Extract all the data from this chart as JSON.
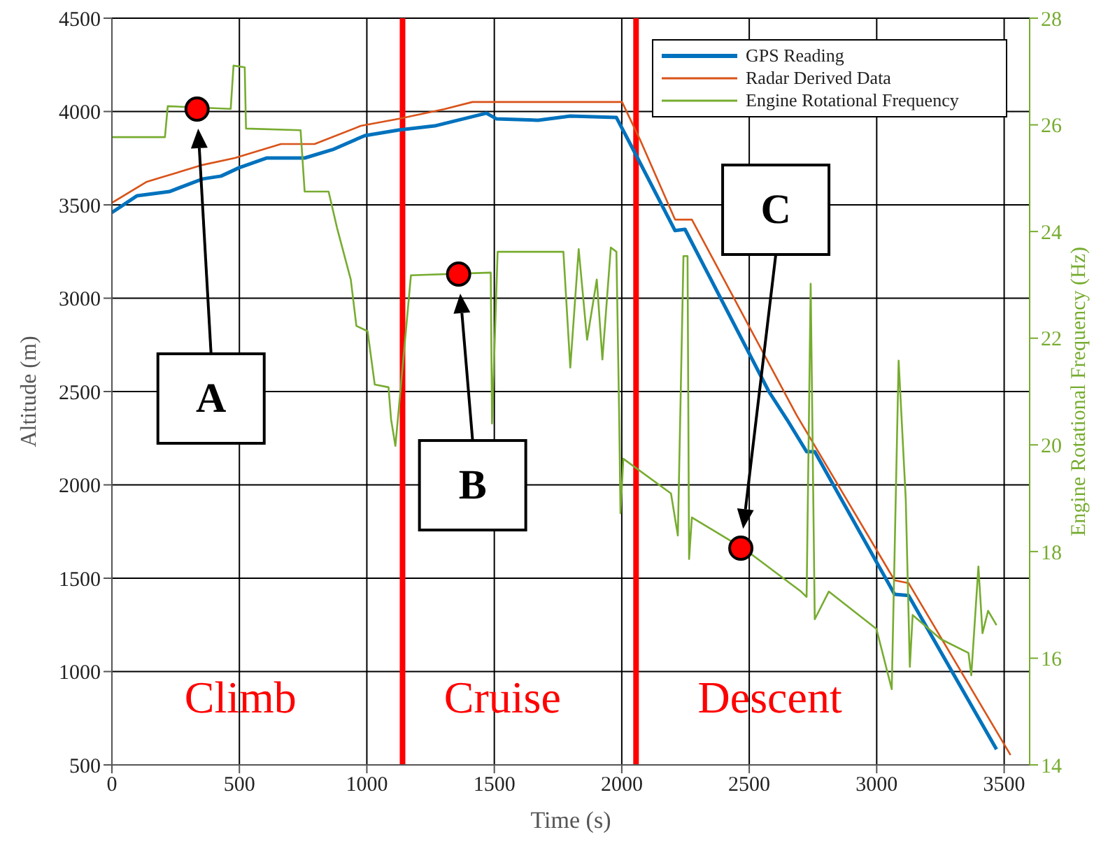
{
  "chart_data": {
    "type": "line",
    "xlabel": "Time (s)",
    "ylabel": "Altitude (m)",
    "y2label": "Engine Rotational Frequency (Hz)",
    "xlim": [
      0,
      3600
    ],
    "xticks": [
      0,
      500,
      1000,
      1500,
      2000,
      2500,
      3000,
      3500
    ],
    "ylim": [
      500,
      4500
    ],
    "yticks": [
      500,
      1000,
      1500,
      2000,
      2500,
      3000,
      3500,
      4000,
      4500
    ],
    "y2lim": [
      14,
      28
    ],
    "y2ticks": [
      14,
      16,
      18,
      20,
      22,
      24,
      26,
      28
    ],
    "grid": true,
    "legend": "top right",
    "marker": "none",
    "line_style": "solid",
    "series": [
      {
        "name": "GPS Reading",
        "color": "#0072bd",
        "x": [
          0,
          99,
          225,
          356,
          428,
          499,
          608,
          756,
          866,
          992,
          1124,
          1266,
          1469,
          1508,
          1672,
          1798,
          1979,
          2045,
          2209,
          2248,
          2577,
          2648,
          2725,
          2757,
          3070,
          3125,
          3470
        ],
        "values": [
          3459,
          3549,
          3571,
          3639,
          3654,
          3699,
          3751,
          3751,
          3796,
          3871,
          3901,
          3923,
          3991,
          3961,
          3953,
          3976,
          3968,
          3796,
          3362,
          3369,
          2500,
          2350,
          2178,
          2178,
          1414,
          1407,
          583
        ]
      },
      {
        "name": "Radar Derived Data",
        "color": "#d95319",
        "x": [
          0,
          137,
          356,
          482,
          663,
          795,
          976,
          1124,
          1305,
          1414,
          2001,
          2072,
          2209,
          2275,
          2686,
          3070,
          3125,
          3525
        ],
        "values": [
          3511,
          3624,
          3714,
          3751,
          3826,
          3826,
          3923,
          3961,
          4013,
          4051,
          4051,
          3848,
          3421,
          3421,
          2373,
          1489,
          1474,
          553
        ]
      },
      {
        "name": "Engine Rotational Frequency",
        "color": "#77ac30",
        "axis": "y2",
        "x": [
          0,
          208,
          219,
          466,
          477,
          521,
          526,
          740,
          756,
          850,
          883,
          937,
          959,
          1003,
          1031,
          1085,
          1095,
          1112,
          1173,
          1486,
          1491,
          1513,
          1771,
          1798,
          1831,
          1864,
          1902,
          1924,
          1957,
          1979,
          1990,
          1995,
          2006,
          2193,
          2220,
          2242,
          2258,
          2264,
          2275,
          2483,
          2703,
          2725,
          2741,
          2757,
          2812,
          2999,
          3059,
          3086,
          3114,
          3130,
          3141,
          3251,
          3360,
          3371,
          3399,
          3415,
          3437,
          3470
        ],
        "values": [
          25.77,
          25.77,
          26.35,
          26.3,
          27.11,
          27.08,
          25.93,
          25.9,
          24.75,
          24.75,
          24.07,
          23.1,
          22.23,
          22.13,
          21.13,
          21.08,
          20.48,
          19.98,
          23.18,
          23.23,
          20.4,
          23.62,
          23.62,
          21.45,
          23.67,
          21.97,
          23.1,
          21.6,
          23.7,
          23.62,
          20.48,
          18.72,
          19.74,
          19.09,
          18.3,
          23.54,
          23.54,
          17.86,
          18.64,
          18.04,
          17.25,
          17.15,
          23.02,
          16.73,
          17.25,
          16.55,
          15.42,
          21.58,
          18.98,
          15.84,
          16.81,
          16.36,
          16.1,
          15.68,
          17.72,
          16.47,
          16.89,
          16.62
        ]
      },
      {
        "type": "scatter",
        "color": "#ff0000",
        "marker": "circle",
        "x": [
          334,
          1360,
          2467
        ],
        "values": [
          4013,
          3129,
          1661
        ]
      }
    ],
    "ref_lines": [
      {
        "axis": "x",
        "value": 1140,
        "color": "#ff0000"
      },
      {
        "axis": "x",
        "value": 2056,
        "color": "#ff0000"
      }
    ],
    "annotations": [
      "A",
      "B",
      "C",
      "Climb",
      "Cruise",
      "Descent"
    ]
  }
}
